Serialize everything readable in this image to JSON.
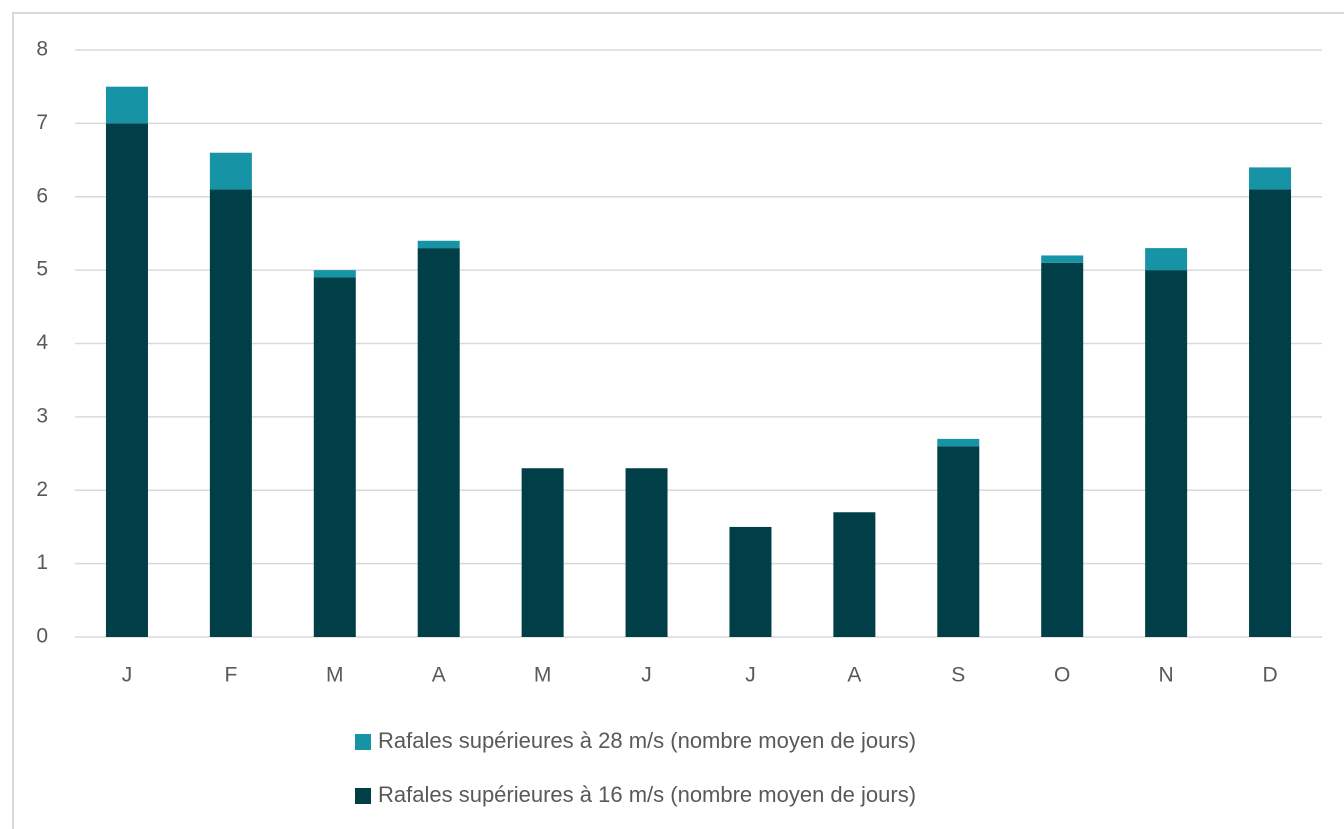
{
  "chart_data": {
    "type": "stacked_bar",
    "categories": [
      "J",
      "F",
      "M",
      "A",
      "M",
      "J",
      "J",
      "A",
      "S",
      "O",
      "N",
      "D"
    ],
    "series": [
      {
        "name": "Rafales supérieures à 16 m/s (nombre moyen de jours)",
        "color": "#003f48",
        "values": [
          7.0,
          6.1,
          4.9,
          5.3,
          2.3,
          2.3,
          1.5,
          1.7,
          2.6,
          5.1,
          5.0,
          6.1
        ]
      },
      {
        "name": "Rafales supérieures à 28 m/s (nombre moyen de jours)",
        "color": "#1793a6",
        "values": [
          0.5,
          0.5,
          0.1,
          0.1,
          0,
          0,
          0,
          0,
          0.1,
          0.1,
          0.3,
          0.3
        ]
      }
    ],
    "ylim": [
      0,
      8
    ],
    "yticks": [
      0,
      1,
      2,
      3,
      4,
      5,
      6,
      7,
      8
    ],
    "grid": true,
    "legend": "bottom"
  }
}
